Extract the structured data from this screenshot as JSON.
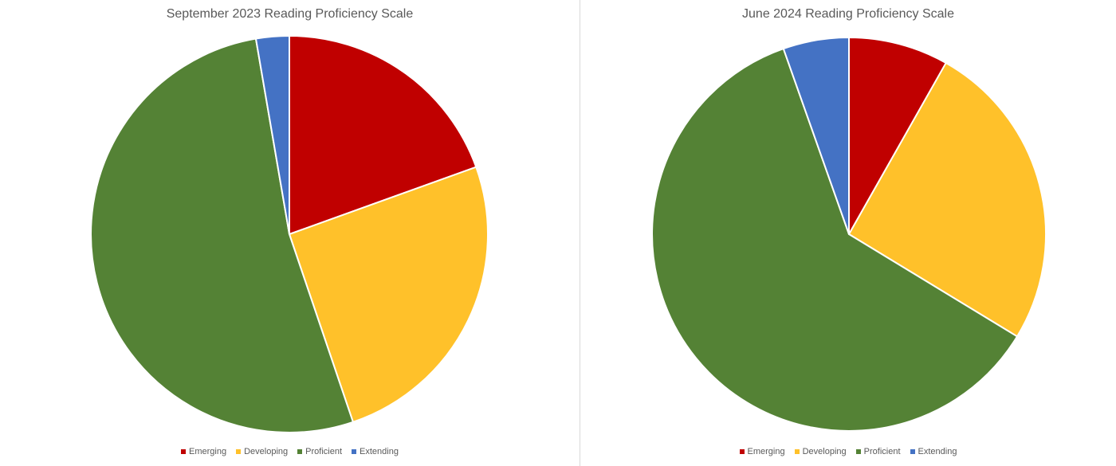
{
  "chart_data": [
    {
      "type": "pie",
      "title": "September 2023 Reading Proficiency Scale",
      "categories": [
        "Emerging",
        "Developing",
        "Proficient",
        "Extending"
      ],
      "values": [
        19.5,
        25.3,
        52.5,
        2.7
      ],
      "colors": [
        "#C00000",
        "#FFC12A",
        "#548235",
        "#4472C4"
      ],
      "start_angle_deg": 0,
      "direction": "clockwise",
      "legend_position": "bottom"
    },
    {
      "type": "pie",
      "title": "June 2024 Reading Proficiency Scale",
      "categories": [
        "Emerging",
        "Developing",
        "Proficient",
        "Extending"
      ],
      "values": [
        8.2,
        25.5,
        60.9,
        5.4
      ],
      "colors": [
        "#C00000",
        "#FFC12A",
        "#548235",
        "#4472C4"
      ],
      "start_angle_deg": 0,
      "direction": "clockwise",
      "legend_position": "bottom"
    }
  ]
}
